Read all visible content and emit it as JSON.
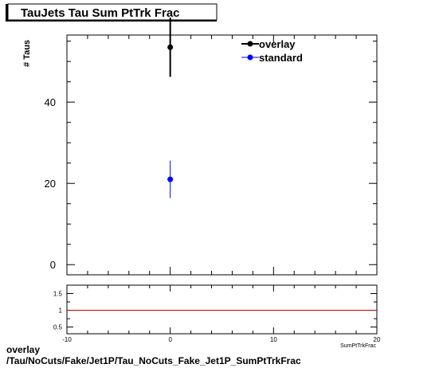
{
  "chart_data": [
    {
      "type": "scatter",
      "title": "TauJets Tau Sum PtTrk Frac",
      "xlabel": "SumPtTrkFrac",
      "ylabel": "# Taus",
      "xlim": [
        -10,
        20
      ],
      "ylim": [
        -2.5,
        56.5
      ],
      "xticks": [
        -10,
        0,
        10,
        20
      ],
      "yticks": [
        0,
        20,
        40
      ],
      "legend_position": "top-right",
      "series": [
        {
          "name": "overlay",
          "color": "#000000",
          "x": [
            0
          ],
          "y": [
            53.5
          ],
          "yerr": [
            7.3
          ]
        },
        {
          "name": "standard",
          "color": "#0000ff",
          "x": [
            0
          ],
          "y": [
            21
          ],
          "yerr": [
            4.6
          ]
        }
      ]
    },
    {
      "type": "line",
      "xlim": [
        -10,
        20
      ],
      "ylim": [
        0.3,
        1.75
      ],
      "xticks": [
        -10,
        0,
        10,
        20
      ],
      "yticks": [
        0.5,
        1,
        1.5
      ],
      "ytick_labels": [
        "0.5",
        "1",
        "1.5"
      ],
      "reference_line": {
        "y": 1,
        "color": "#cc0000"
      }
    }
  ],
  "footer": {
    "line1": "overlay",
    "line2": "/Tau/NoCuts/Fake/Jet1P/Tau_NoCuts_Fake_Jet1P_SumPtTrkFrac"
  }
}
